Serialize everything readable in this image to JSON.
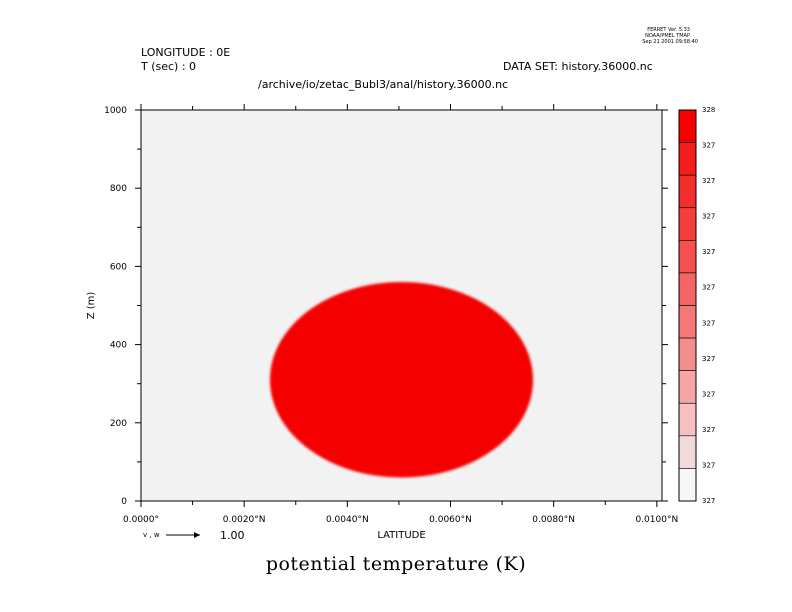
{
  "header": {
    "ferret_version": "FERRET Ver. 5.33",
    "org": "NOAA/PMEL TMAP",
    "timestamp": "Sep 21 2001 09:58:40",
    "longitude": "LONGITUDE : 0E",
    "time": "T (sec) : 0",
    "dataset": "DATA SET: history.36000.nc",
    "path": "/archive/io/zetac_Bubl3/anal/history.36000.nc"
  },
  "vector_key": {
    "label": "v , w",
    "value": "1.00"
  },
  "colors": {
    "background_field": "#f2f2f2",
    "bubble": "#f50000"
  },
  "chart_data": {
    "type": "heatmap",
    "title": "potential temperature (K)",
    "xlabel": "LATITUDE",
    "ylabel": "Z (m)",
    "xlim": [
      0.0,
      0.0101
    ],
    "ylim": [
      0,
      1000
    ],
    "x_ticks": [
      0.0,
      0.002,
      0.004,
      0.006,
      0.008,
      0.01
    ],
    "x_tick_labels": [
      "0.0000°",
      "0.0020°N",
      "0.0040°N",
      "0.0060°N",
      "0.0080°N",
      "0.0100°N"
    ],
    "y_ticks": [
      0,
      200,
      400,
      600,
      800,
      1000
    ],
    "y_tick_labels": [
      "0",
      "200",
      "400",
      "600",
      "800",
      "1000"
    ],
    "field": {
      "background_value": 327,
      "anomaly": {
        "shape": "ellipse",
        "center_x": 0.00505,
        "center_y": 310,
        "half_width_x": 0.00255,
        "half_height_y": 250,
        "value": 328
      }
    },
    "colorbar": {
      "labels": [
        "328",
        "327",
        "327",
        "327",
        "327",
        "327",
        "327",
        "327",
        "327",
        "327",
        "327",
        "327"
      ],
      "colors": [
        "#f50000",
        "#f41d1d",
        "#f42d2d",
        "#f43d3d",
        "#f45050",
        "#f46464",
        "#f47878",
        "#f48e8e",
        "#f4a6a6",
        "#f4c0c0",
        "#f2dada",
        "#f7f7f7"
      ]
    }
  }
}
